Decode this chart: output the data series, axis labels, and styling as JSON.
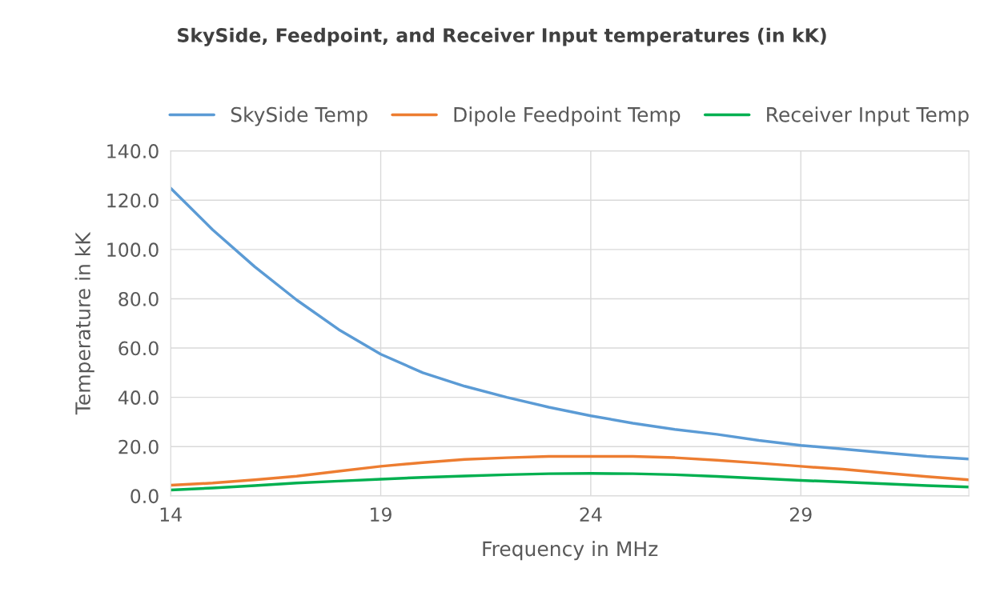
{
  "chart_data": {
    "type": "line",
    "title": "SkySide, Feedpoint, and Receiver Input temperatures (in kK)",
    "xlabel": "Frequency in MHz",
    "ylabel": "Temperature in kK",
    "x": [
      14,
      15,
      16,
      17,
      18,
      19,
      20,
      21,
      22,
      23,
      24,
      25,
      26,
      27,
      28,
      29,
      30,
      31,
      32,
      33
    ],
    "series": [
      {
        "name": "SkySide Temp",
        "color": "#5b9bd5",
        "values": [
          124.9,
          108,
          93,
          79.5,
          67.5,
          57.5,
          50,
          44.5,
          40,
          36,
          32.5,
          29.5,
          27,
          25,
          22.5,
          20.5,
          19,
          17.5,
          16,
          15
        ]
      },
      {
        "name": "Dipole Feedpoint Temp",
        "color": "#ed7d31",
        "values": [
          4.3,
          5.2,
          6.5,
          8,
          10,
          12,
          13.5,
          14.8,
          15.5,
          16,
          16,
          16,
          15.5,
          14.5,
          13.3,
          12,
          10.8,
          9.3,
          7.8,
          6.5
        ]
      },
      {
        "name": "Receiver Input Temp",
        "color": "#00b050",
        "values": [
          2.4,
          3.2,
          4.2,
          5.2,
          6,
          6.8,
          7.5,
          8.1,
          8.6,
          9,
          9.1,
          9,
          8.6,
          7.9,
          7.1,
          6.3,
          5.6,
          4.9,
          4.2,
          3.6
        ]
      }
    ],
    "xlim": [
      14,
      33
    ],
    "xticks": [
      14,
      19,
      24,
      29
    ],
    "ylim": [
      0,
      140
    ],
    "yticks": [
      {
        "value": 0,
        "label": "0.0"
      },
      {
        "value": 20,
        "label": "20.0"
      },
      {
        "value": 40,
        "label": "40.0"
      },
      {
        "value": 60,
        "label": "60.0"
      },
      {
        "value": 80,
        "label": "80.0"
      },
      {
        "value": 100,
        "label": "100.0"
      },
      {
        "value": 120,
        "label": "120.0"
      },
      {
        "value": 140,
        "label": "140.0"
      }
    ],
    "grid": true,
    "legend": "top",
    "marker": "none",
    "line_style": "solid"
  }
}
